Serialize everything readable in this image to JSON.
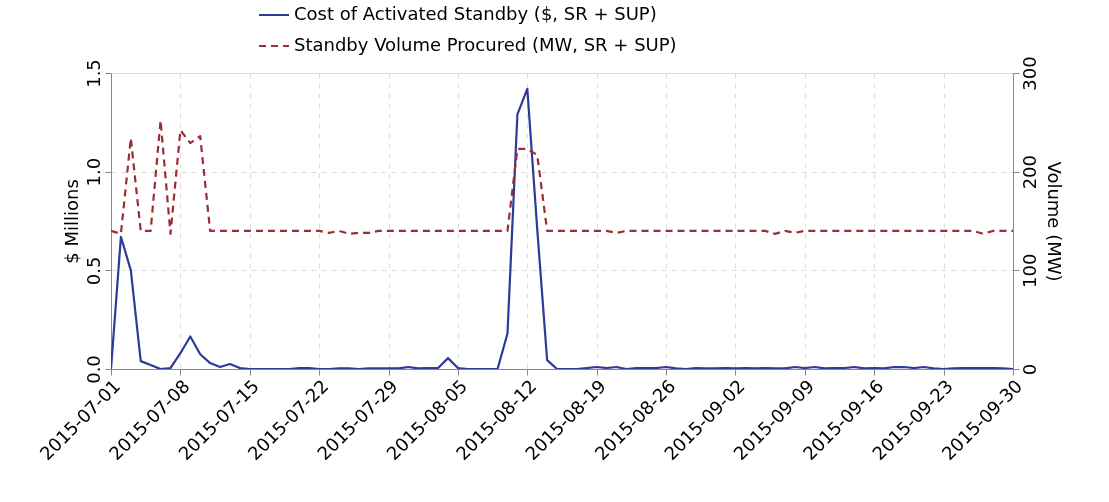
{
  "chart_data": {
    "type": "line",
    "x": [
      "2015-07-01",
      "2015-07-02",
      "2015-07-03",
      "2015-07-04",
      "2015-07-05",
      "2015-07-06",
      "2015-07-07",
      "2015-07-08",
      "2015-07-09",
      "2015-07-10",
      "2015-07-11",
      "2015-07-12",
      "2015-07-13",
      "2015-07-14",
      "2015-07-15",
      "2015-07-16",
      "2015-07-17",
      "2015-07-18",
      "2015-07-19",
      "2015-07-20",
      "2015-07-21",
      "2015-07-22",
      "2015-07-23",
      "2015-07-24",
      "2015-07-25",
      "2015-07-26",
      "2015-07-27",
      "2015-07-28",
      "2015-07-29",
      "2015-07-30",
      "2015-07-31",
      "2015-08-01",
      "2015-08-02",
      "2015-08-03",
      "2015-08-04",
      "2015-08-05",
      "2015-08-06",
      "2015-08-07",
      "2015-08-08",
      "2015-08-09",
      "2015-08-10",
      "2015-08-11",
      "2015-08-12",
      "2015-08-13",
      "2015-08-14",
      "2015-08-15",
      "2015-08-16",
      "2015-08-17",
      "2015-08-18",
      "2015-08-19",
      "2015-08-20",
      "2015-08-21",
      "2015-08-22",
      "2015-08-23",
      "2015-08-24",
      "2015-08-25",
      "2015-08-26",
      "2015-08-27",
      "2015-08-28",
      "2015-08-29",
      "2015-08-30",
      "2015-08-31",
      "2015-09-01",
      "2015-09-02",
      "2015-09-03",
      "2015-09-04",
      "2015-09-05",
      "2015-09-06",
      "2015-09-07",
      "2015-09-08",
      "2015-09-09",
      "2015-09-10",
      "2015-09-11",
      "2015-09-12",
      "2015-09-13",
      "2015-09-14",
      "2015-09-15",
      "2015-09-16",
      "2015-09-17",
      "2015-09-18",
      "2015-09-19",
      "2015-09-20",
      "2015-09-21",
      "2015-09-22",
      "2015-09-23",
      "2015-09-24",
      "2015-09-25",
      "2015-09-26",
      "2015-09-27",
      "2015-09-28",
      "2015-09-29",
      "2015-09-30"
    ],
    "series": [
      {
        "name": "Cost of Activated Standby ($, SR + SUP)",
        "color": "#2e3a9a",
        "line_style": "solid",
        "values": [
          0,
          0.67,
          0.5,
          0.04,
          0.02,
          0,
          0.005,
          0.08,
          0.165,
          0.075,
          0.03,
          0.01,
          0.025,
          0.005,
          0,
          0,
          0,
          0,
          0,
          0.005,
          0.005,
          0,
          0,
          0.003,
          0.003,
          0,
          0.003,
          0.003,
          0.003,
          0.003,
          0.01,
          0.003,
          0.005,
          0.005,
          0.055,
          0.005,
          0,
          0,
          0,
          0,
          0.18,
          1.29,
          1.42,
          0.71,
          0.045,
          0,
          0,
          0,
          0.005,
          0.01,
          0.005,
          0.01,
          0,
          0.005,
          0.005,
          0.005,
          0.01,
          0.003,
          0,
          0.005,
          0.003,
          0.003,
          0.005,
          0.003,
          0.005,
          0.003,
          0.005,
          0.003,
          0.003,
          0.01,
          0.005,
          0.01,
          0.003,
          0.005,
          0.005,
          0.01,
          0.003,
          0.005,
          0.003,
          0.01,
          0.01,
          0.005,
          0.01,
          0.003,
          0,
          0.003,
          0.005,
          0.005,
          0.005,
          0.005,
          0.003,
          0
        ]
      },
      {
        "name": "Standby Volume Procured (MW, SR + SUP)",
        "color": "#9b2d35",
        "line_style": "dashed",
        "axis": "y2",
        "values": [
          140,
          137,
          234,
          140,
          140,
          252,
          137,
          242,
          229,
          236,
          140,
          140,
          140,
          140,
          140,
          140,
          140,
          140,
          140,
          140,
          140,
          140,
          138,
          140,
          137,
          138,
          138,
          140,
          140,
          140,
          140,
          140,
          140,
          140,
          140,
          140,
          140,
          140,
          140,
          140,
          140,
          223,
          223,
          217,
          140,
          140,
          140,
          140,
          140,
          140,
          140,
          138,
          140,
          140,
          140,
          140,
          140,
          140,
          140,
          140,
          140,
          140,
          140,
          140,
          140,
          140,
          140,
          137,
          140,
          138,
          140,
          140,
          140,
          140,
          140,
          140,
          140,
          140,
          140,
          140,
          140,
          140,
          140,
          140,
          140,
          140,
          140,
          140,
          137,
          140,
          140,
          140
        ]
      }
    ],
    "ylabel": "$ Millions",
    "y2label": "Volume (MW)",
    "xlim": [
      "2015-07-01",
      "2015-09-30"
    ],
    "xticks": [
      "2015-07-01",
      "2015-07-08",
      "2015-07-15",
      "2015-07-22",
      "2015-07-29",
      "2015-08-05",
      "2015-08-12",
      "2015-08-19",
      "2015-08-26",
      "2015-09-02",
      "2015-09-09",
      "2015-09-16",
      "2015-09-23",
      "2015-09-30"
    ],
    "ylim": [
      0,
      1.5
    ],
    "yticks": [
      {
        "value": 0,
        "label": "0.0"
      },
      {
        "value": 0.5,
        "label": "0.5"
      },
      {
        "value": 1,
        "label": "1.0"
      },
      {
        "value": 1.5,
        "label": "1.5"
      }
    ],
    "y2lim": [
      0,
      300
    ],
    "y2ticks": [
      0,
      100,
      200,
      300
    ],
    "grid": true,
    "legend": "top",
    "marker": "none"
  }
}
